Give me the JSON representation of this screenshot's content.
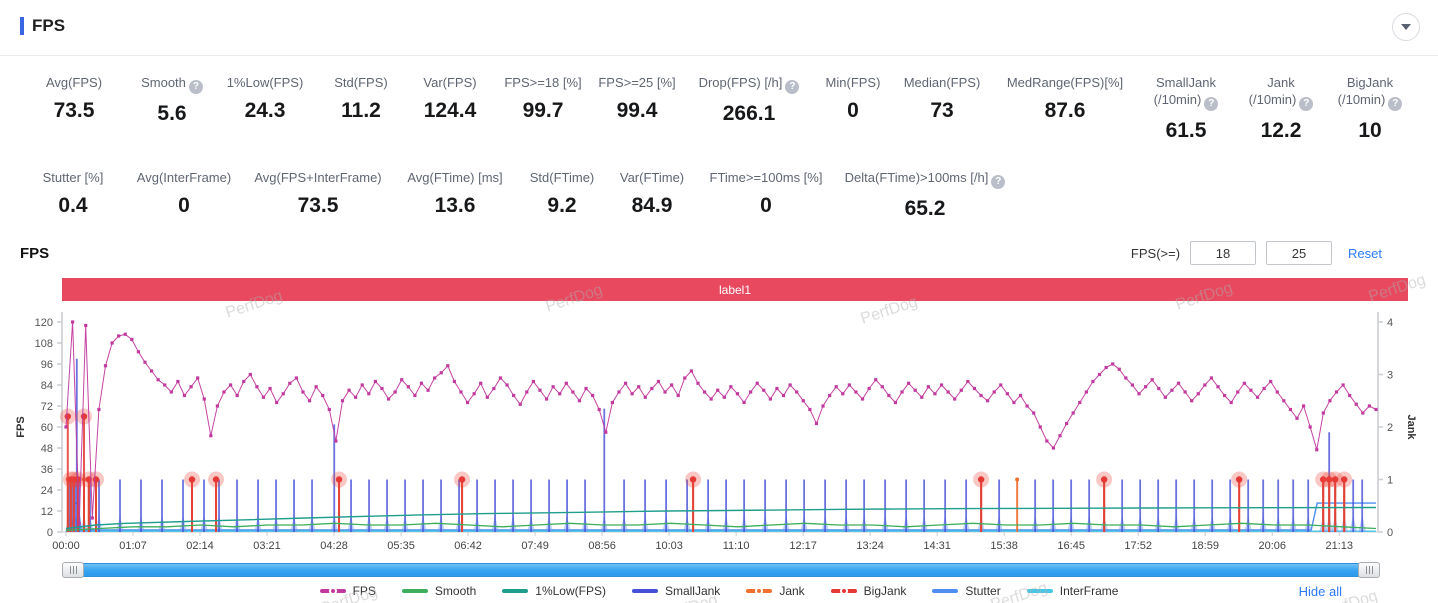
{
  "header": {
    "title": "FPS"
  },
  "stats_row1": [
    {
      "label": "Avg(FPS)",
      "value": "73.5"
    },
    {
      "label": "Smooth",
      "value": "5.6",
      "help": true
    },
    {
      "label": "1%Low(FPS)",
      "value": "24.3"
    },
    {
      "label": "Std(FPS)",
      "value": "11.2"
    },
    {
      "label": "Var(FPS)",
      "value": "124.4"
    },
    {
      "label": "FPS>=18 [%]",
      "value": "99.7"
    },
    {
      "label": "FPS>=25 [%]",
      "value": "99.4"
    },
    {
      "label": "Drop(FPS) [/h]",
      "value": "266.1",
      "help": true
    },
    {
      "label": "Min(FPS)",
      "value": "0"
    },
    {
      "label": "Median(FPS)",
      "value": "73"
    },
    {
      "label": "MedRange(FPS)[%]",
      "value": "87.6"
    },
    {
      "label": "SmallJank",
      "label2": "(/10min)",
      "value": "61.5",
      "help": true
    },
    {
      "label": "Jank",
      "label2": "(/10min)",
      "value": "12.2",
      "help": true
    },
    {
      "label": "BigJank",
      "label2": "(/10min)",
      "value": "10",
      "help": true
    }
  ],
  "stats_row2": [
    {
      "label": "Stutter [%]",
      "value": "0.4"
    },
    {
      "label": "Avg(InterFrame)",
      "value": "0"
    },
    {
      "label": "Avg(FPS+InterFrame)",
      "value": "73.5"
    },
    {
      "label": "Avg(FTime) [ms]",
      "value": "13.6"
    },
    {
      "label": "Std(FTime)",
      "value": "9.2"
    },
    {
      "label": "Var(FTime)",
      "value": "84.9"
    },
    {
      "label": "FTime>=100ms [%]",
      "value": "0"
    },
    {
      "label": "Delta(FTime)>100ms [/h]",
      "value": "65.2",
      "help": true
    }
  ],
  "chart_controls": {
    "section_title": "FPS",
    "filter_label": "FPS(>=)",
    "input1": "18",
    "input2": "25",
    "reset_label": "Reset"
  },
  "banner": {
    "label": "label1",
    "color": "#e8495f"
  },
  "watermark": {
    "text": "PerfDog"
  },
  "legend": {
    "hide_all_label": "Hide all",
    "items": [
      {
        "label": "FPS",
        "color": "#c23a9e",
        "dot": true
      },
      {
        "label": "Smooth",
        "color": "#3dae5b",
        "dot": false
      },
      {
        "label": "1%Low(FPS)",
        "color": "#1f9e8e",
        "dot": false
      },
      {
        "label": "SmallJank",
        "color": "#4450d8",
        "dot": false
      },
      {
        "label": "Jank",
        "color": "#f07030",
        "dot": true
      },
      {
        "label": "BigJank",
        "color": "#e53935",
        "dot": true
      },
      {
        "label": "Stutter",
        "color": "#4d8ef0",
        "dot": false
      },
      {
        "label": "InterFrame",
        "color": "#45c8e8",
        "dot": false
      }
    ]
  },
  "chart_data": {
    "type": "line",
    "title": "FPS",
    "x_axis": {
      "ticks": [
        "00:00",
        "01:07",
        "02:14",
        "03:21",
        "04:28",
        "05:35",
        "06:42",
        "07:49",
        "08:56",
        "10:03",
        "11:10",
        "12:17",
        "13:24",
        "14:31",
        "15:38",
        "16:45",
        "17:52",
        "18:59",
        "20:06",
        "21:13"
      ],
      "tick_interval_min": 1.1167,
      "range_min": [
        0,
        21.83
      ]
    },
    "y_left": {
      "label": "FPS",
      "range": [
        0,
        120
      ],
      "ticks": [
        0,
        12,
        24,
        36,
        48,
        60,
        72,
        84,
        96,
        108,
        120
      ]
    },
    "y_right": {
      "label": "Jank",
      "range": [
        0,
        4
      ],
      "ticks": [
        0,
        1,
        2,
        3,
        4
      ]
    },
    "series": [
      {
        "name": "FPS",
        "axis": "left",
        "color": "#c23a9e",
        "marker": "square",
        "values": [
          60,
          120,
          5,
          118,
          8,
          70,
          95,
          108,
          112,
          113,
          110,
          103,
          97,
          92,
          87,
          84,
          80,
          86,
          78,
          83,
          88,
          76,
          55,
          72,
          80,
          84,
          78,
          86,
          90,
          83,
          77,
          82,
          74,
          79,
          85,
          88,
          80,
          75,
          83,
          78,
          70,
          52,
          75,
          81,
          77,
          84,
          79,
          86,
          82,
          76,
          80,
          87,
          83,
          78,
          85,
          81,
          88,
          91,
          95,
          86,
          80,
          74,
          79,
          85,
          77,
          82,
          88,
          84,
          78,
          73,
          80,
          86,
          81,
          76,
          83,
          79,
          85,
          80,
          75,
          82,
          78,
          70,
          57,
          74,
          80,
          85,
          79,
          83,
          77,
          82,
          86,
          80,
          84,
          78,
          88,
          92,
          85,
          80,
          76,
          81,
          77,
          83,
          79,
          74,
          80,
          85,
          81,
          76,
          82,
          78,
          84,
          80,
          75,
          70,
          62,
          72,
          78,
          83,
          79,
          84,
          80,
          76,
          82,
          87,
          83,
          78,
          74,
          80,
          85,
          81,
          77,
          83,
          79,
          84,
          80,
          76,
          81,
          86,
          82,
          78,
          75,
          80,
          84,
          79,
          74,
          78,
          72,
          68,
          60,
          52,
          48,
          55,
          62,
          68,
          74,
          80,
          86,
          90,
          94,
          96,
          93,
          88,
          84,
          79,
          83,
          87,
          82,
          77,
          81,
          85,
          80,
          75,
          79,
          84,
          88,
          83,
          78,
          74,
          80,
          85,
          81,
          77,
          82,
          86,
          80,
          75,
          70,
          65,
          72,
          60,
          47,
          68,
          75,
          80,
          84,
          78,
          73,
          68,
          72,
          70
        ]
      },
      {
        "name": "Smooth",
        "axis": "left",
        "color": "#3dae5b",
        "values": [
          1,
          2,
          3,
          3,
          4,
          3,
          4,
          4,
          5,
          4,
          4,
          5,
          4,
          3,
          4,
          5,
          4,
          4,
          5,
          4,
          3,
          4,
          5,
          4,
          4,
          3,
          4,
          5,
          4,
          4,
          5,
          4,
          4,
          3,
          4,
          5,
          4,
          4,
          3,
          2
        ]
      },
      {
        "name": "1%Low(FPS)",
        "axis": "left",
        "color": "#1f9e8e",
        "points": [
          [
            0,
            2
          ],
          [
            0.5,
            4
          ],
          [
            1,
            5
          ],
          [
            2,
            6
          ],
          [
            3,
            7
          ],
          [
            4,
            8
          ],
          [
            5,
            9
          ],
          [
            6,
            9.8
          ],
          [
            7,
            10.5
          ],
          [
            8,
            11
          ],
          [
            9,
            11.5
          ],
          [
            10,
            12
          ],
          [
            11,
            12.3
          ],
          [
            12,
            12.6
          ],
          [
            13,
            13
          ],
          [
            14,
            13.2
          ],
          [
            15,
            13.4
          ],
          [
            16,
            13.5
          ],
          [
            17,
            13.6
          ],
          [
            18,
            13.7
          ],
          [
            19,
            13.8
          ],
          [
            20,
            13.9
          ],
          [
            21.83,
            14
          ]
        ]
      },
      {
        "name": "SmallJank",
        "axis": "right",
        "color": "#4450d8",
        "kind": "spikes",
        "spikes": [
          [
            0.05,
            1
          ],
          [
            0.1,
            1
          ],
          [
            0.15,
            1
          ],
          [
            0.18,
            3.3
          ],
          [
            0.22,
            1
          ],
          [
            0.3,
            1
          ],
          [
            0.4,
            1
          ],
          [
            0.55,
            1
          ],
          [
            0.9,
            1
          ],
          [
            1.25,
            1
          ],
          [
            1.6,
            1
          ],
          [
            1.95,
            1
          ],
          [
            2.3,
            1
          ],
          [
            2.55,
            1
          ],
          [
            2.85,
            1
          ],
          [
            3.2,
            1
          ],
          [
            3.5,
            1
          ],
          [
            3.8,
            1
          ],
          [
            4.1,
            1
          ],
          [
            4.47,
            2.05
          ],
          [
            4.75,
            1
          ],
          [
            5.05,
            1
          ],
          [
            5.35,
            1
          ],
          [
            5.65,
            1
          ],
          [
            5.95,
            1
          ],
          [
            6.25,
            1
          ],
          [
            6.55,
            1
          ],
          [
            6.85,
            1
          ],
          [
            7.15,
            1
          ],
          [
            7.45,
            1
          ],
          [
            7.75,
            1
          ],
          [
            8.05,
            1
          ],
          [
            8.35,
            1
          ],
          [
            8.65,
            1
          ],
          [
            8.97,
            2.35
          ],
          [
            9.3,
            1
          ],
          [
            9.65,
            1
          ],
          [
            10,
            1
          ],
          [
            10.35,
            1
          ],
          [
            10.7,
            1
          ],
          [
            11,
            1
          ],
          [
            11.3,
            1
          ],
          [
            11.65,
            1
          ],
          [
            12,
            1
          ],
          [
            12.3,
            1
          ],
          [
            12.65,
            1
          ],
          [
            13,
            1
          ],
          [
            13.3,
            1
          ],
          [
            13.65,
            1
          ],
          [
            14,
            1
          ],
          [
            14.3,
            1
          ],
          [
            14.65,
            1
          ],
          [
            15,
            1
          ],
          [
            15.25,
            1
          ],
          [
            15.55,
            1
          ],
          [
            16.15,
            1
          ],
          [
            16.45,
            1
          ],
          [
            16.75,
            1
          ],
          [
            17.05,
            1
          ],
          [
            17.3,
            1
          ],
          [
            17.6,
            1
          ],
          [
            17.9,
            1
          ],
          [
            18.2,
            1
          ],
          [
            18.5,
            1
          ],
          [
            18.8,
            1
          ],
          [
            19.1,
            1
          ],
          [
            19.4,
            1
          ],
          [
            19.7,
            1
          ],
          [
            19.95,
            1
          ],
          [
            20.2,
            1
          ],
          [
            20.45,
            1
          ],
          [
            20.7,
            1
          ],
          [
            20.95,
            1
          ],
          [
            21.05,
            1.9
          ],
          [
            21.15,
            1
          ],
          [
            21.3,
            1
          ],
          [
            21.45,
            1
          ],
          [
            21.6,
            1
          ]
        ]
      },
      {
        "name": "Jank",
        "axis": "right",
        "color": "#f07030",
        "kind": "spikes",
        "spikes": [
          [
            0.03,
            1
          ],
          [
            0.08,
            1
          ],
          [
            0.13,
            1
          ],
          [
            0.2,
            1
          ],
          [
            0.3,
            1
          ],
          [
            0.38,
            1
          ],
          [
            0.5,
            1
          ],
          [
            2.1,
            1
          ],
          [
            2.5,
            1
          ],
          [
            4.55,
            1
          ],
          [
            6.6,
            1
          ],
          [
            10.45,
            1
          ],
          [
            15.25,
            1
          ],
          [
            15.85,
            1
          ],
          [
            17.3,
            1
          ],
          [
            19.55,
            1
          ],
          [
            20.95,
            1
          ],
          [
            21.05,
            1
          ],
          [
            21.15,
            1
          ],
          [
            21.3,
            1
          ]
        ]
      },
      {
        "name": "BigJank",
        "axis": "right",
        "color": "#e53935",
        "kind": "spikes",
        "marker": "halo-dot",
        "spikes": [
          [
            0.03,
            2.2
          ],
          [
            0.08,
            1
          ],
          [
            0.13,
            1
          ],
          [
            0.2,
            1
          ],
          [
            0.3,
            2.2
          ],
          [
            0.38,
            1
          ],
          [
            0.5,
            1
          ],
          [
            2.1,
            1
          ],
          [
            2.5,
            1
          ],
          [
            4.55,
            1
          ],
          [
            6.6,
            1
          ],
          [
            10.45,
            1
          ],
          [
            15.25,
            1
          ],
          [
            17.3,
            1
          ],
          [
            19.55,
            1
          ],
          [
            20.95,
            1
          ],
          [
            21.05,
            1
          ],
          [
            21.15,
            1
          ],
          [
            21.3,
            1
          ]
        ]
      },
      {
        "name": "Stutter",
        "axis": "right",
        "color": "#4d8ef0",
        "points": [
          [
            0,
            0.04
          ],
          [
            0.12,
            0.04
          ],
          [
            0.14,
            0.55
          ],
          [
            0.2,
            0.55
          ],
          [
            0.25,
            0.04
          ],
          [
            20.75,
            0.04
          ],
          [
            20.85,
            0.55
          ],
          [
            21.83,
            0.55
          ]
        ]
      },
      {
        "name": "InterFrame",
        "axis": "right",
        "color": "#45c8e8",
        "points": [
          [
            0,
            0.015
          ],
          [
            21.83,
            0.015
          ]
        ]
      }
    ]
  }
}
